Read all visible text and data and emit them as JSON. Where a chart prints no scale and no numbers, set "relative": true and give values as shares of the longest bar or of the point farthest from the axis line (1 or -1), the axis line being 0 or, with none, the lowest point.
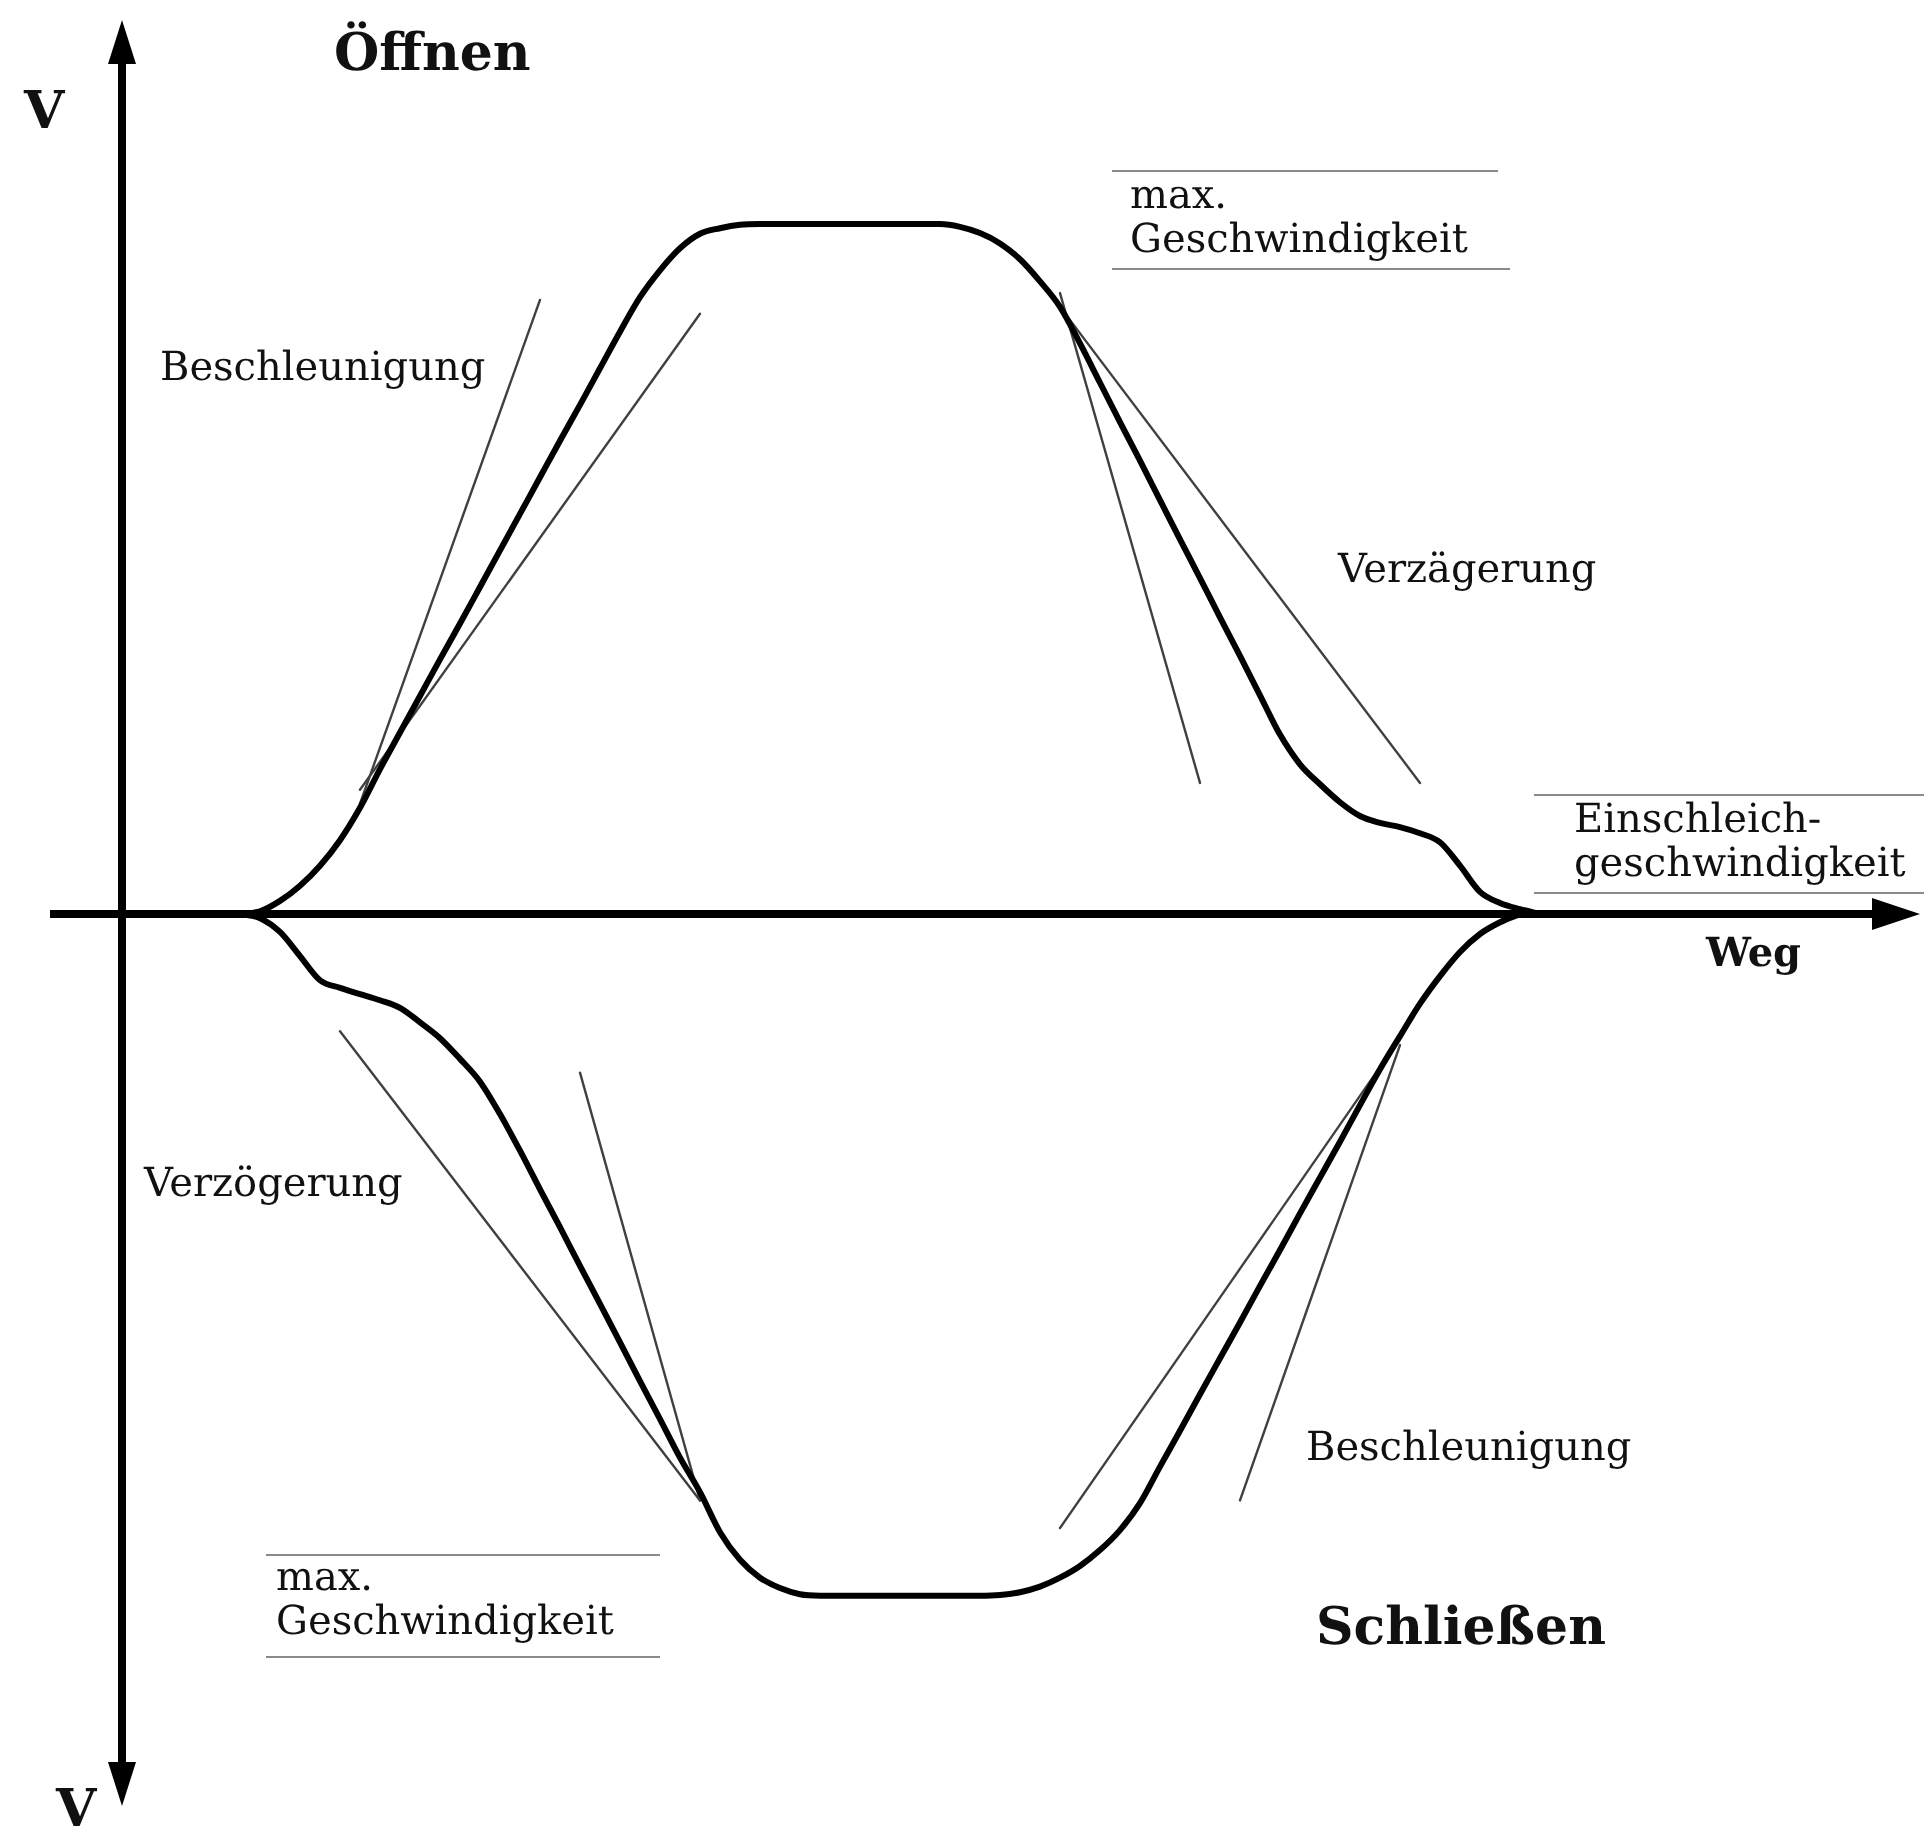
{
  "chart_data": {
    "type": "line",
    "relative": true,
    "xlabel": "Weg",
    "ylabel": "V",
    "annotations": [
      "Öffnen",
      "Beschleunigung",
      "max.\nGeschwindigkeit",
      "Verzägerung",
      "Einschleich-\ngeschwindigkeit",
      "Verzögerung",
      "Beschleunigung",
      "max.\nGeschwindigkeit",
      "Schließen",
      "V"
    ],
    "categories": [
      null,
      null,
      null,
      null,
      null,
      null,
      null,
      null,
      null,
      null,
      null,
      null,
      null,
      null,
      null,
      null,
      null,
      null,
      null,
      null,
      null,
      null,
      null,
      null,
      null,
      null,
      null,
      null,
      null,
      null,
      null,
      null,
      null,
      null,
      null,
      null,
      null,
      null,
      null,
      null,
      null,
      null,
      null,
      null,
      null,
      null,
      null,
      null,
      null,
      null,
      null,
      null,
      null,
      null,
      null,
      null,
      null,
      null,
      null,
      null,
      null,
      null,
      null,
      null,
      null,
      null
    ],
    "series": [
      {
        "color": "#000000",
        "values": [
          0,
          0.004,
          0.019,
          0.041,
          0.07,
          0.107,
          0.154,
          0.21,
          0.263,
          0.316,
          0.369,
          0.421,
          0.474,
          0.527,
          0.58,
          0.633,
          0.686,
          0.738,
          0.791,
          0.844,
          0.894,
          0.933,
          0.965,
          0.986,
          0.994,
          0.999,
          1,
          1,
          1,
          1,
          1,
          1,
          1,
          1,
          1,
          1,
          0.996,
          0.987,
          0.972,
          0.949,
          0.917,
          0.88,
          0.827,
          0.77,
          0.713,
          0.657,
          0.6,
          0.543,
          0.487,
          0.43,
          0.374,
          0.317,
          0.26,
          0.217,
          0.188,
          0.162,
          0.142,
          0.132,
          0.126,
          0.117,
          0.104,
          0.07,
          0.032,
          0.016,
          0.007,
          0
        ]
      },
      {
        "color": "#000000",
        "values": [
          0,
          -0.006,
          -0.026,
          -0.061,
          -0.096,
          -0.107,
          -0.116,
          -0.125,
          -0.136,
          -0.157,
          -0.18,
          -0.21,
          -0.243,
          -0.29,
          -0.343,
          -0.399,
          -0.454,
          -0.51,
          -0.565,
          -0.621,
          -0.677,
          -0.732,
          -0.788,
          -0.838,
          -0.896,
          -0.936,
          -0.962,
          -0.977,
          -0.986,
          -0.988,
          -0.988,
          -0.988,
          -0.988,
          -0.988,
          -0.988,
          -0.988,
          -0.988,
          -0.988,
          -0.987,
          -0.983,
          -0.975,
          -0.962,
          -0.945,
          -0.922,
          -0.893,
          -0.854,
          -0.801,
          -0.749,
          -0.696,
          -0.644,
          -0.592,
          -0.539,
          -0.487,
          -0.434,
          -0.382,
          -0.33,
          -0.277,
          -0.225,
          -0.177,
          -0.13,
          -0.09,
          -0.055,
          -0.029,
          -0.012,
          0,
          null
        ]
      },
      {
        "color": "#404040",
        "values": [
          null,
          null,
          null,
          null,
          null,
          null,
          0.16,
          null,
          null,
          null,
          null,
          null,
          null,
          null,
          null,
          0.89,
          null,
          null,
          null,
          null,
          null,
          null,
          null,
          null,
          null,
          null,
          null,
          null,
          null,
          null,
          null,
          null,
          null,
          null,
          null,
          null,
          null,
          null,
          null,
          null,
          null,
          null,
          null,
          null,
          null,
          null,
          null,
          null,
          null,
          null,
          null,
          null,
          null,
          null,
          null,
          null,
          null,
          null,
          null,
          null,
          null,
          null,
          null,
          null,
          null,
          null
        ]
      },
      {
        "color": "#404040",
        "values": [
          null,
          null,
          null,
          null,
          null,
          null,
          0.18,
          null,
          null,
          null,
          null,
          null,
          null,
          null,
          null,
          null,
          null,
          null,
          null,
          null,
          null,
          null,
          null,
          0.87,
          null,
          null,
          null,
          null,
          null,
          null,
          null,
          null,
          null,
          null,
          null,
          null,
          null,
          null,
          null,
          null,
          null,
          null,
          null,
          null,
          null,
          null,
          null,
          null,
          null,
          null,
          null,
          null,
          null,
          null,
          null,
          null,
          null,
          null,
          null,
          null,
          null,
          null,
          null,
          null,
          null,
          null
        ]
      },
      {
        "color": "#404040",
        "values": [
          null,
          null,
          null,
          null,
          null,
          null,
          null,
          null,
          null,
          null,
          null,
          null,
          null,
          null,
          null,
          null,
          null,
          null,
          null,
          null,
          null,
          null,
          null,
          null,
          null,
          null,
          null,
          null,
          null,
          null,
          null,
          null,
          null,
          null,
          null,
          null,
          null,
          null,
          null,
          null,
          null,
          0.9,
          null,
          null,
          null,
          null,
          null,
          null,
          0.19,
          null,
          null,
          null,
          null,
          null,
          null,
          null,
          null,
          null,
          null,
          null,
          null,
          null,
          null,
          null,
          null,
          null
        ]
      },
      {
        "color": "#404040",
        "values": [
          null,
          null,
          null,
          null,
          null,
          null,
          null,
          null,
          null,
          null,
          null,
          null,
          null,
          null,
          null,
          null,
          null,
          null,
          null,
          null,
          null,
          null,
          null,
          null,
          null,
          null,
          null,
          null,
          null,
          null,
          null,
          null,
          null,
          null,
          null,
          null,
          null,
          null,
          null,
          null,
          null,
          0.88,
          null,
          null,
          null,
          null,
          null,
          null,
          null,
          null,
          null,
          null,
          null,
          null,
          null,
          null,
          null,
          null,
          null,
          0.19,
          null,
          null,
          null,
          null,
          null,
          null
        ]
      },
      {
        "color": "#404040",
        "values": [
          null,
          null,
          null,
          null,
          null,
          -0.17,
          null,
          null,
          null,
          null,
          null,
          null,
          null,
          null,
          null,
          null,
          null,
          null,
          null,
          null,
          null,
          null,
          null,
          -0.85,
          null,
          null,
          null,
          null,
          null,
          null,
          null,
          null,
          null,
          null,
          null,
          null,
          null,
          null,
          null,
          null,
          null,
          null,
          null,
          null,
          null,
          null,
          null,
          null,
          null,
          null,
          null,
          null,
          null,
          null,
          null,
          null,
          null,
          null,
          null,
          null,
          null,
          null,
          null,
          null,
          null,
          null
        ]
      },
      {
        "color": "#404040",
        "values": [
          null,
          null,
          null,
          null,
          null,
          null,
          null,
          null,
          null,
          null,
          null,
          null,
          null,
          null,
          null,
          null,
          null,
          -0.23,
          null,
          null,
          null,
          null,
          null,
          -0.85,
          null,
          null,
          null,
          null,
          null,
          null,
          null,
          null,
          null,
          null,
          null,
          null,
          null,
          null,
          null,
          null,
          null,
          null,
          null,
          null,
          null,
          null,
          null,
          null,
          null,
          null,
          null,
          null,
          null,
          null,
          null,
          null,
          null,
          null,
          null,
          null,
          null,
          null,
          null,
          null,
          null,
          null
        ]
      },
      {
        "color": "#404040",
        "values": [
          null,
          null,
          null,
          null,
          null,
          null,
          null,
          null,
          null,
          null,
          null,
          null,
          null,
          null,
          null,
          null,
          null,
          null,
          null,
          null,
          null,
          null,
          null,
          null,
          null,
          null,
          null,
          null,
          null,
          null,
          null,
          null,
          null,
          null,
          null,
          null,
          null,
          null,
          null,
          null,
          null,
          -0.89,
          null,
          null,
          null,
          null,
          null,
          null,
          null,
          null,
          null,
          null,
          null,
          null,
          null,
          null,
          null,
          null,
          -0.18,
          null,
          null,
          null,
          null,
          null,
          null,
          null
        ]
      },
      {
        "color": "#404040",
        "values": [
          null,
          null,
          null,
          null,
          null,
          null,
          null,
          null,
          null,
          null,
          null,
          null,
          null,
          null,
          null,
          null,
          null,
          null,
          null,
          null,
          null,
          null,
          null,
          null,
          null,
          null,
          null,
          null,
          null,
          null,
          null,
          null,
          null,
          null,
          null,
          null,
          null,
          null,
          null,
          null,
          null,
          null,
          null,
          null,
          null,
          null,
          null,
          null,
          null,
          null,
          -0.85,
          null,
          null,
          null,
          null,
          null,
          null,
          null,
          -0.19,
          null,
          null,
          null,
          null,
          null,
          null,
          null
        ]
      }
    ]
  }
}
